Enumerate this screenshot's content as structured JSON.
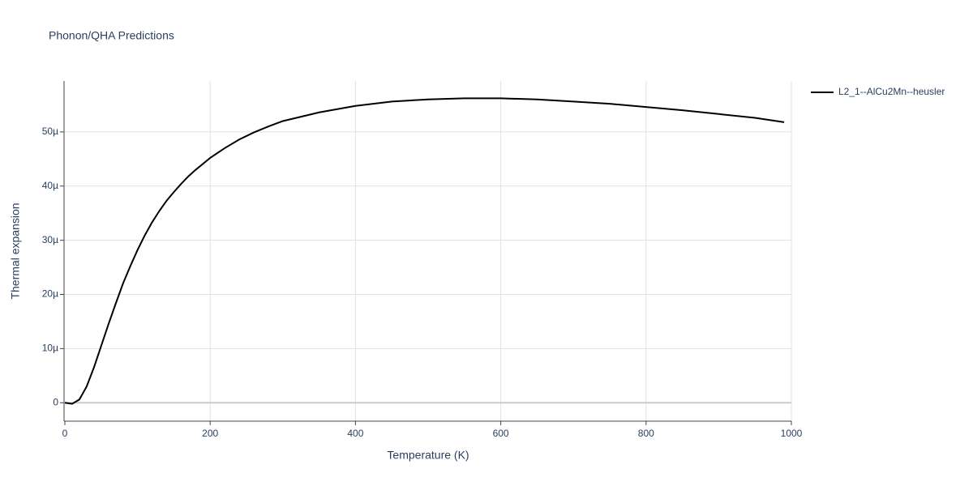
{
  "chart_data": {
    "type": "line",
    "title": "Phonon/QHA Predictions",
    "x_label": "Temperature (K)",
    "y_label": "Thermal expansion",
    "x": [
      0,
      10,
      20,
      30,
      40,
      50,
      60,
      70,
      80,
      90,
      100,
      110,
      120,
      130,
      140,
      150,
      160,
      170,
      180,
      200,
      220,
      240,
      260,
      280,
      300,
      350,
      400,
      450,
      500,
      550,
      600,
      650,
      700,
      750,
      800,
      850,
      900,
      950,
      990
    ],
    "series": [
      {
        "name": "L2_1--AlCu2Mn--heusler",
        "color": "#000000",
        "values": [
          0,
          -2e-07,
          6e-07,
          3e-06,
          6.5e-06,
          1.05e-05,
          1.45e-05,
          1.83e-05,
          2.2e-05,
          2.52e-05,
          2.82e-05,
          3.09e-05,
          3.33e-05,
          3.54e-05,
          3.73e-05,
          3.89e-05,
          4.04e-05,
          4.18e-05,
          4.3e-05,
          4.52e-05,
          4.7e-05,
          4.86e-05,
          4.99e-05,
          5.1e-05,
          5.2e-05,
          5.36e-05,
          5.48e-05,
          5.56e-05,
          5.6e-05,
          5.62e-05,
          5.62e-05,
          5.6e-05,
          5.56e-05,
          5.52e-05,
          5.46e-05,
          5.4e-05,
          5.33e-05,
          5.26e-05,
          5.18e-05
        ]
      }
    ],
    "xlim": [
      0,
      1000
    ],
    "xticks": [
      0,
      200,
      400,
      600,
      800,
      1000
    ],
    "ylim": [
      -3.4e-06,
      5.94e-05
    ],
    "yticks": [
      0,
      {
        "value": 1e-05,
        "label": "10µ"
      },
      {
        "value": 2e-05,
        "label": "20µ"
      },
      {
        "value": 3e-05,
        "label": "30µ"
      },
      {
        "value": 4e-05,
        "label": "40µ"
      },
      {
        "value": 5e-05,
        "label": "50µ"
      }
    ],
    "grid": true,
    "legend": "right"
  }
}
